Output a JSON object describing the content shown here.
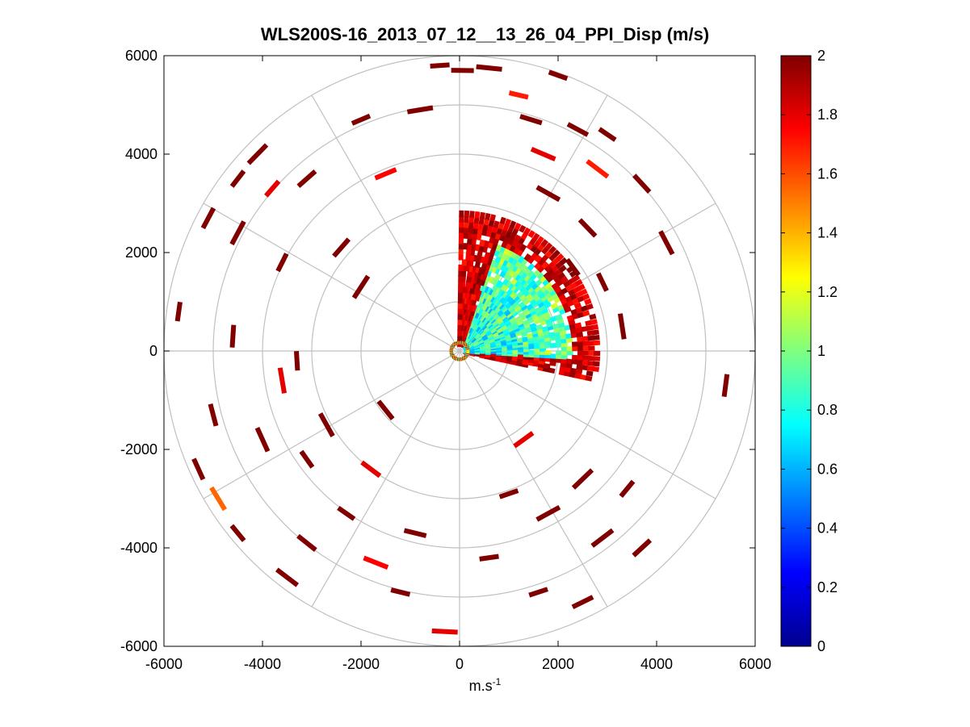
{
  "chart_data": {
    "type": "heatmap",
    "subtype": "polar-ppi-scan",
    "title": "WLS200S-16_2013_07_12__13_26_04_PPI_Disp (m/s)",
    "xlabel_base": "m.s",
    "xlabel_exp": "-1",
    "xlim": [
      -6000,
      6000
    ],
    "ylim": [
      -6000,
      6000
    ],
    "xticks": [
      -6000,
      -4000,
      -2000,
      0,
      2000,
      4000,
      6000
    ],
    "yticks": [
      -6000,
      -4000,
      -2000,
      0,
      2000,
      4000,
      6000
    ],
    "colorbar": {
      "colormap": "jet",
      "range": [
        0,
        2
      ],
      "ticks": [
        0,
        0.2,
        0.4,
        0.6,
        0.8,
        1,
        1.2,
        1.4,
        1.6,
        1.8,
        2
      ],
      "tick_labels": [
        "0",
        "0.2",
        "0.4",
        "0.6",
        "0.8",
        "1",
        "1.2",
        "1.4",
        "1.6",
        "1.8",
        "2"
      ]
    },
    "polar_grid": {
      "ring_radii": [
        1000,
        2000,
        3000,
        4000,
        5000,
        6000
      ],
      "spoke_angles_deg": [
        0,
        30,
        60,
        90,
        120,
        150,
        180,
        210,
        240,
        270,
        300,
        330
      ],
      "grid_color": "#c0c0c0"
    },
    "dense_sector": {
      "angle_deg_range": [
        -12,
        90
      ],
      "range_m": [
        150,
        2800
      ],
      "typical_value": 0.75,
      "note": "low-dispersion region (blue/cyan/green) near origin, dark red at edges"
    },
    "cells": [
      {
        "x": -400,
        "y": 5800,
        "v": 2
      },
      {
        "x": 60,
        "y": 5700,
        "v": 2
      },
      {
        "x": 600,
        "y": 5750,
        "v": 2
      },
      {
        "x": 1200,
        "y": 5200,
        "v": 1.7
      },
      {
        "x": 1450,
        "y": 4700,
        "v": 2
      },
      {
        "x": 1700,
        "y": 4000,
        "v": 1.8
      },
      {
        "x": 2000,
        "y": 5600,
        "v": 2
      },
      {
        "x": 2400,
        "y": 4500,
        "v": 2
      },
      {
        "x": 2800,
        "y": 3700,
        "v": 1.7
      },
      {
        "x": 3000,
        "y": 4400,
        "v": 2
      },
      {
        "x": 3700,
        "y": 3400,
        "v": 2
      },
      {
        "x": 1800,
        "y": 3200,
        "v": 2
      },
      {
        "x": 2300,
        "y": 1700,
        "v": 2
      },
      {
        "x": 2600,
        "y": 2500,
        "v": 2
      },
      {
        "x": 3300,
        "y": 500,
        "v": 2
      },
      {
        "x": 2900,
        "y": 1400,
        "v": 2
      },
      {
        "x": 5400,
        "y": -700,
        "v": 2
      },
      {
        "x": 4200,
        "y": 2200,
        "v": 2
      },
      {
        "x": -2000,
        "y": 4700,
        "v": 2
      },
      {
        "x": -1500,
        "y": 3600,
        "v": 1.75
      },
      {
        "x": -800,
        "y": 4900,
        "v": 2
      },
      {
        "x": -3800,
        "y": 3300,
        "v": 1.8
      },
      {
        "x": -3100,
        "y": 3500,
        "v": 2
      },
      {
        "x": -4100,
        "y": 4000,
        "v": 2
      },
      {
        "x": -4500,
        "y": 3500,
        "v": 2
      },
      {
        "x": -5100,
        "y": 2700,
        "v": 2
      },
      {
        "x": -4500,
        "y": 2400,
        "v": 2
      },
      {
        "x": -3600,
        "y": 1800,
        "v": 2
      },
      {
        "x": -2400,
        "y": 2100,
        "v": 2
      },
      {
        "x": -2000,
        "y": 1300,
        "v": 2
      },
      {
        "x": -5700,
        "y": 800,
        "v": 2
      },
      {
        "x": -4600,
        "y": 300,
        "v": 2
      },
      {
        "x": -3600,
        "y": -600,
        "v": 1.8
      },
      {
        "x": -3300,
        "y": -200,
        "v": 2
      },
      {
        "x": -5000,
        "y": -1300,
        "v": 2
      },
      {
        "x": -4000,
        "y": -1800,
        "v": 2
      },
      {
        "x": -3100,
        "y": -2200,
        "v": 2
      },
      {
        "x": -5300,
        "y": -2400,
        "v": 2
      },
      {
        "x": -4900,
        "y": -3000,
        "v": 1.55
      },
      {
        "x": -4500,
        "y": -3700,
        "v": 2
      },
      {
        "x": -3100,
        "y": -3900,
        "v": 2
      },
      {
        "x": -3500,
        "y": -4600,
        "v": 2
      },
      {
        "x": -2300,
        "y": -3300,
        "v": 2
      },
      {
        "x": -1800,
        "y": -2400,
        "v": 1.8
      },
      {
        "x": -1700,
        "y": -4300,
        "v": 1.75
      },
      {
        "x": -1200,
        "y": -4900,
        "v": 2
      },
      {
        "x": -900,
        "y": -3700,
        "v": 2
      },
      {
        "x": -300,
        "y": -5700,
        "v": 1.8
      },
      {
        "x": 600,
        "y": -4200,
        "v": 2
      },
      {
        "x": 1300,
        "y": -1800,
        "v": 1.8
      },
      {
        "x": 1800,
        "y": -3300,
        "v": 2
      },
      {
        "x": 1600,
        "y": -4900,
        "v": 2
      },
      {
        "x": 2500,
        "y": -5100,
        "v": 2
      },
      {
        "x": 2900,
        "y": -3800,
        "v": 2
      },
      {
        "x": 3400,
        "y": -2800,
        "v": 2
      },
      {
        "x": 3700,
        "y": -4000,
        "v": 2
      },
      {
        "x": 2500,
        "y": -2600,
        "v": 2
      },
      {
        "x": 1000,
        "y": -2900,
        "v": 2
      },
      {
        "x": -1500,
        "y": -1200,
        "v": 2
      },
      {
        "x": -2700,
        "y": -1500,
        "v": 2
      }
    ]
  }
}
